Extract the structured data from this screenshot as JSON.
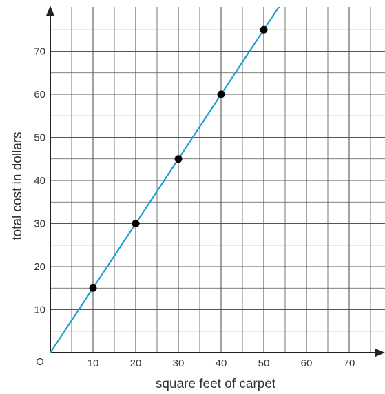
{
  "chart_data": {
    "type": "scatter",
    "title": "",
    "xlabel": "square feet of carpet",
    "ylabel": "total cost in dollars",
    "origin_label": "O",
    "xlim": [
      0,
      80
    ],
    "ylim": [
      0,
      80
    ],
    "x_ticks": [
      10,
      20,
      30,
      40,
      50,
      60,
      70
    ],
    "y_ticks": [
      10,
      20,
      30,
      40,
      50,
      60,
      70
    ],
    "minor_grid_step": 5,
    "grid": true,
    "points": [
      {
        "x": 10,
        "y": 15
      },
      {
        "x": 20,
        "y": 30
      },
      {
        "x": 30,
        "y": 45
      },
      {
        "x": 40,
        "y": 60
      },
      {
        "x": 50,
        "y": 75
      }
    ],
    "line": {
      "slope": 1.5,
      "intercept": 0
    },
    "colors": {
      "line": "#1f9bd1",
      "points": "#000000",
      "grid": "#555555",
      "axes": "#222222"
    }
  }
}
